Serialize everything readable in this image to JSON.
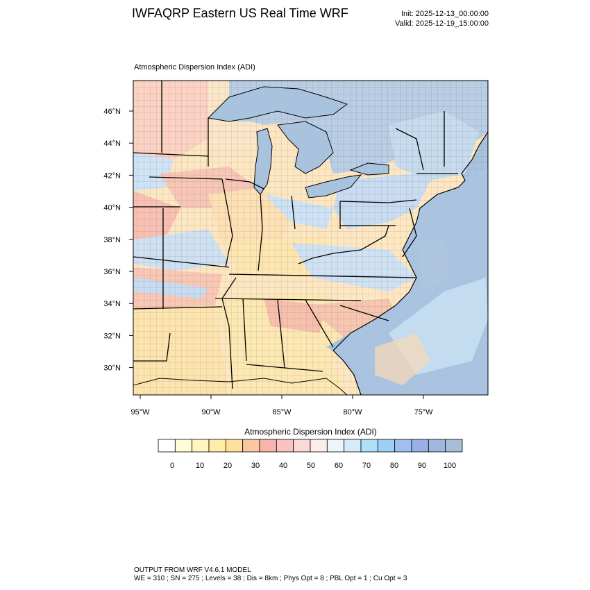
{
  "header": {
    "title": "IWFAQRP Eastern US Real Time WRF",
    "init": "Init: 2025-12-13_00:00:00",
    "valid": "Valid: 2025-12-19_15:00:00"
  },
  "plot": {
    "label": "Atmospheric Dispersion Index   (ADI)",
    "lat_ticks": [
      "46°N",
      "44°N",
      "42°N",
      "40°N",
      "38°N",
      "36°N",
      "34°N",
      "32°N",
      "30°N"
    ],
    "lon_ticks": [
      "95°W",
      "90°W",
      "85°W",
      "80°W",
      "75°W"
    ]
  },
  "colorbar": {
    "title": "Atmospheric Dispersion Index  (ADI)",
    "labels": [
      "0",
      "10",
      "20",
      "30",
      "40",
      "50",
      "60",
      "70",
      "80",
      "90",
      "100"
    ],
    "colors": [
      "#ffffff",
      "#fffcd8",
      "#fff5bf",
      "#ffeca6",
      "#ffdf9c",
      "#fbc7a0",
      "#f8b3ab",
      "#f8c3c0",
      "#fbd9d6",
      "#fdeceb",
      "#eef4fb",
      "#d6ecfa",
      "#aee0f8",
      "#9ecff4",
      "#9fbff0",
      "#98b0e7",
      "#9db8dc",
      "#a6bfd6"
    ]
  },
  "footer": {
    "line1": "OUTPUT FROM WRF V4.6.1 MODEL",
    "line2": "WE = 310 ; SN = 275 ; Levels = 38 ; Dis = 8km ; Phys Opt = 8 ; PBL Opt = 1 ; Cu Opt = 3"
  }
}
